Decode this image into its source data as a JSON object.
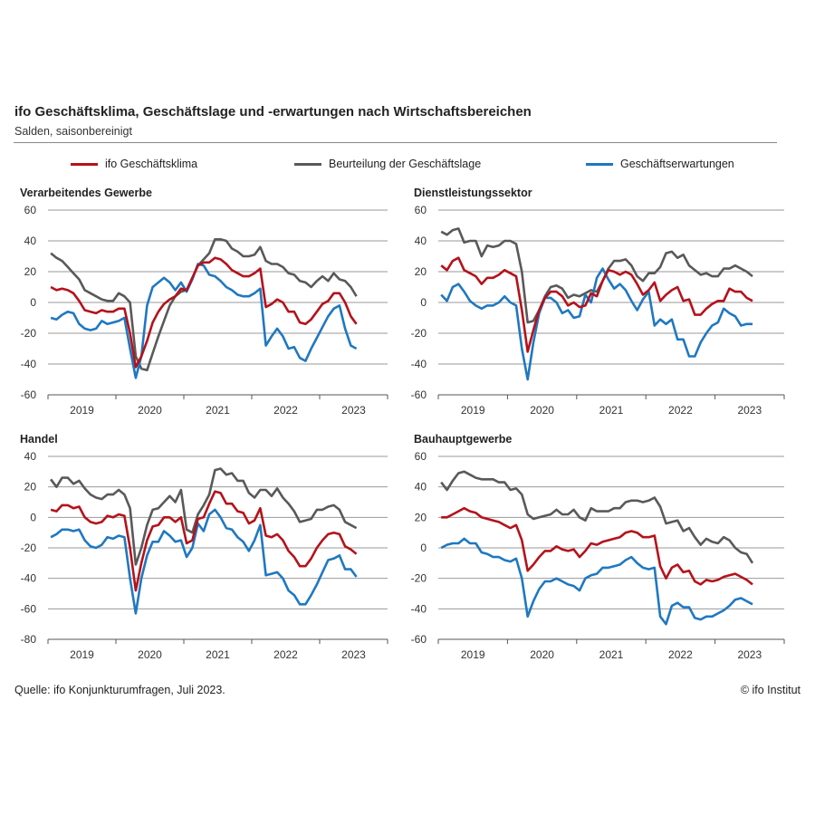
{
  "header": {
    "title": "ifo Geschäftsklima, Geschäftslage und -erwartungen nach Wirtschaftsbereichen",
    "subtitle": "Salden, saisonbereinigt"
  },
  "legend": [
    {
      "label": "ifo Geschäftsklima",
      "color": "#b5121b"
    },
    {
      "label": "Beurteilung der Geschäftslage",
      "color": "#595959"
    },
    {
      "label": "Geschäftserwartungen",
      "color": "#1f78c1"
    }
  ],
  "footer": {
    "source": "Quelle: ifo Konjunkturumfragen, Juli 2023.",
    "copyright": "© ifo Institut"
  },
  "chart_data": [
    {
      "type": "line",
      "title": "Verarbeitendes Gewerbe",
      "x_start": "2019-01",
      "x_end": "2023-07",
      "frequency": "monthly",
      "xticks": [
        "2019",
        "2020",
        "2021",
        "2022",
        "2023"
      ],
      "ylim": [
        -60,
        60
      ],
      "yticks": [
        -60,
        -40,
        -20,
        0,
        20,
        40,
        60
      ],
      "series": [
        {
          "name": "ifo Geschäftsklima",
          "values": [
            10,
            8,
            9,
            8,
            6,
            1,
            -5,
            -6,
            -7,
            -5,
            -6,
            -6,
            -4,
            -4,
            -20,
            -42,
            -35,
            -25,
            -13,
            -6,
            -1,
            2,
            4,
            9,
            8,
            16,
            24,
            26,
            26,
            29,
            28,
            25,
            21,
            19,
            17,
            17,
            19,
            22,
            -3,
            -1,
            2,
            0,
            -6,
            -6,
            -13,
            -14,
            -11,
            -6,
            -1,
            1,
            6,
            6,
            0,
            -9,
            -14
          ]
        },
        {
          "name": "Beurteilung der Geschäftslage",
          "values": [
            32,
            29,
            27,
            23,
            19,
            15,
            8,
            6,
            4,
            2,
            1,
            1,
            6,
            4,
            0,
            -35,
            -43,
            -44,
            -33,
            -22,
            -12,
            -2,
            4,
            7,
            8,
            16,
            24,
            28,
            32,
            41,
            41,
            40,
            35,
            33,
            30,
            30,
            31,
            36,
            27,
            25,
            25,
            23,
            19,
            18,
            14,
            13,
            10,
            14,
            17,
            14,
            19,
            15,
            14,
            10,
            4
          ]
        },
        {
          "name": "Geschäftserwartungen",
          "values": [
            -10,
            -11,
            -8,
            -6,
            -7,
            -14,
            -17,
            -18,
            -17,
            -12,
            -14,
            -13,
            -12,
            -10,
            -30,
            -49,
            -35,
            -2,
            10,
            13,
            16,
            13,
            8,
            13,
            7,
            15,
            25,
            24,
            18,
            17,
            14,
            10,
            8,
            5,
            4,
            4,
            6,
            9,
            -28,
            -22,
            -17,
            -22,
            -30,
            -29,
            -36,
            -38,
            -30,
            -23,
            -16,
            -9,
            -4,
            -2,
            -17,
            -28,
            -30
          ]
        }
      ]
    },
    {
      "type": "line",
      "title": "Dienstleistungssektor",
      "x_start": "2019-01",
      "x_end": "2023-07",
      "frequency": "monthly",
      "xticks": [
        "2019",
        "2020",
        "2021",
        "2022",
        "2023"
      ],
      "ylim": [
        -60,
        60
      ],
      "yticks": [
        -60,
        -40,
        -20,
        0,
        20,
        40,
        60
      ],
      "series": [
        {
          "name": "ifo Geschäftsklima",
          "values": [
            24,
            21,
            27,
            29,
            21,
            19,
            17,
            12,
            16,
            16,
            18,
            21,
            19,
            17,
            -5,
            -32,
            -18,
            -5,
            3,
            7,
            7,
            4,
            -2,
            0,
            -3,
            -2,
            6,
            4,
            14,
            21,
            20,
            18,
            20,
            18,
            12,
            5,
            8,
            13,
            1,
            5,
            8,
            10,
            1,
            2,
            -8,
            -8,
            -4,
            -1,
            1,
            1,
            9,
            7,
            7,
            3,
            1
          ]
        },
        {
          "name": "Beurteilung der Geschäftslage",
          "values": [
            46,
            44,
            47,
            48,
            39,
            40,
            40,
            30,
            37,
            36,
            37,
            40,
            40,
            38,
            20,
            -13,
            -12,
            -5,
            4,
            10,
            11,
            9,
            3,
            5,
            4,
            6,
            8,
            7,
            14,
            22,
            27,
            27,
            28,
            24,
            17,
            14,
            19,
            19,
            23,
            32,
            33,
            29,
            31,
            24,
            21,
            18,
            19,
            17,
            17,
            22,
            22,
            24,
            22,
            20,
            17
          ]
        },
        {
          "name": "Geschäftserwartungen",
          "values": [
            5,
            1,
            10,
            12,
            7,
            1,
            -2,
            -4,
            -2,
            -2,
            0,
            4,
            0,
            -2,
            -30,
            -50,
            -26,
            -7,
            3,
            3,
            0,
            -7,
            -5,
            -10,
            -9,
            5,
            0,
            16,
            22,
            15,
            9,
            12,
            8,
            1,
            -5,
            2,
            7,
            -15,
            -11,
            -14,
            -11,
            -24,
            -24,
            -35,
            -35,
            -26,
            -20,
            -15,
            -13,
            -4,
            -7,
            -9,
            -15,
            -14,
            -14
          ]
        }
      ]
    },
    {
      "type": "line",
      "title": "Handel",
      "x_start": "2019-01",
      "x_end": "2023-07",
      "frequency": "monthly",
      "xticks": [
        "2019",
        "2020",
        "2021",
        "2022",
        "2023"
      ],
      "ylim": [
        -80,
        40
      ],
      "yticks": [
        -80,
        -60,
        -40,
        -20,
        0,
        20,
        40
      ],
      "series": [
        {
          "name": "ifo Geschäftsklima",
          "values": [
            5,
            4,
            8,
            8,
            6,
            7,
            0,
            -3,
            -4,
            -3,
            1,
            0,
            2,
            1,
            -20,
            -48,
            -30,
            -15,
            -6,
            -5,
            0,
            0,
            -3,
            0,
            -17,
            -15,
            -1,
            0,
            9,
            17,
            16,
            9,
            9,
            4,
            3,
            -4,
            -2,
            6,
            -12,
            -13,
            -11,
            -15,
            -22,
            -26,
            -32,
            -32,
            -27,
            -20,
            -15,
            -11,
            -10,
            -11,
            -19,
            -21,
            -24
          ]
        },
        {
          "name": "Beurteilung der Geschäftslage",
          "values": [
            25,
            20,
            26,
            26,
            22,
            24,
            19,
            15,
            13,
            12,
            15,
            15,
            18,
            15,
            6,
            -31,
            -20,
            -5,
            5,
            6,
            10,
            14,
            10,
            18,
            -8,
            -10,
            2,
            8,
            15,
            31,
            32,
            28,
            29,
            24,
            24,
            16,
            13,
            18,
            18,
            14,
            19,
            13,
            9,
            4,
            -3,
            -2,
            -1,
            5,
            5,
            7,
            8,
            5,
            -3,
            -5,
            -7
          ]
        },
        {
          "name": "Geschäftserwartungen",
          "values": [
            -13,
            -11,
            -8,
            -8,
            -9,
            -8,
            -15,
            -19,
            -20,
            -18,
            -13,
            -14,
            -12,
            -13,
            -40,
            -63,
            -40,
            -25,
            -16,
            -16,
            -9,
            -12,
            -16,
            -15,
            -26,
            -20,
            -4,
            -9,
            2,
            5,
            0,
            -7,
            -8,
            -13,
            -16,
            -22,
            -15,
            -5,
            -38,
            -37,
            -36,
            -40,
            -48,
            -51,
            -57,
            -57,
            -51,
            -44,
            -36,
            -28,
            -27,
            -25,
            -34,
            -34,
            -39
          ]
        }
      ]
    },
    {
      "type": "line",
      "title": "Bauhauptgewerbe",
      "x_start": "2019-01",
      "x_end": "2023-07",
      "frequency": "monthly",
      "xticks": [
        "2019",
        "2020",
        "2021",
        "2022",
        "2023"
      ],
      "ylim": [
        -60,
        60
      ],
      "yticks": [
        -60,
        -40,
        -20,
        0,
        20,
        40,
        60
      ],
      "series": [
        {
          "name": "ifo Geschäftsklima",
          "values": [
            20,
            20,
            22,
            24,
            26,
            24,
            23,
            20,
            19,
            18,
            17,
            15,
            13,
            15,
            5,
            -15,
            -11,
            -6,
            -2,
            -2,
            1,
            -1,
            -2,
            -1,
            -6,
            -2,
            3,
            2,
            4,
            5,
            6,
            7,
            10,
            11,
            10,
            7,
            7,
            8,
            -12,
            -20,
            -13,
            -11,
            -16,
            -15,
            -22,
            -24,
            -21,
            -22,
            -21,
            -19,
            -18,
            -17,
            -19,
            -21,
            -24
          ]
        },
        {
          "name": "Beurteilung der Geschäftslage",
          "values": [
            43,
            38,
            44,
            49,
            50,
            48,
            46,
            45,
            45,
            45,
            43,
            43,
            38,
            39,
            35,
            22,
            19,
            20,
            21,
            22,
            25,
            22,
            22,
            25,
            20,
            18,
            26,
            24,
            24,
            24,
            26,
            26,
            30,
            31,
            31,
            30,
            31,
            33,
            27,
            16,
            17,
            18,
            11,
            13,
            7,
            2,
            6,
            4,
            3,
            7,
            5,
            0,
            -3,
            -4,
            -10
          ]
        },
        {
          "name": "Geschäftserwartungen",
          "values": [
            0,
            2,
            3,
            3,
            6,
            3,
            3,
            -3,
            -4,
            -6,
            -6,
            -8,
            -9,
            -7,
            -20,
            -45,
            -35,
            -27,
            -22,
            -22,
            -20,
            -22,
            -24,
            -25,
            -28,
            -20,
            -18,
            -17,
            -13,
            -13,
            -12,
            -11,
            -8,
            -6,
            -10,
            -13,
            -14,
            -13,
            -45,
            -50,
            -38,
            -36,
            -39,
            -39,
            -46,
            -47,
            -45,
            -45,
            -43,
            -41,
            -38,
            -34,
            -33,
            -35,
            -37
          ]
        }
      ]
    }
  ]
}
